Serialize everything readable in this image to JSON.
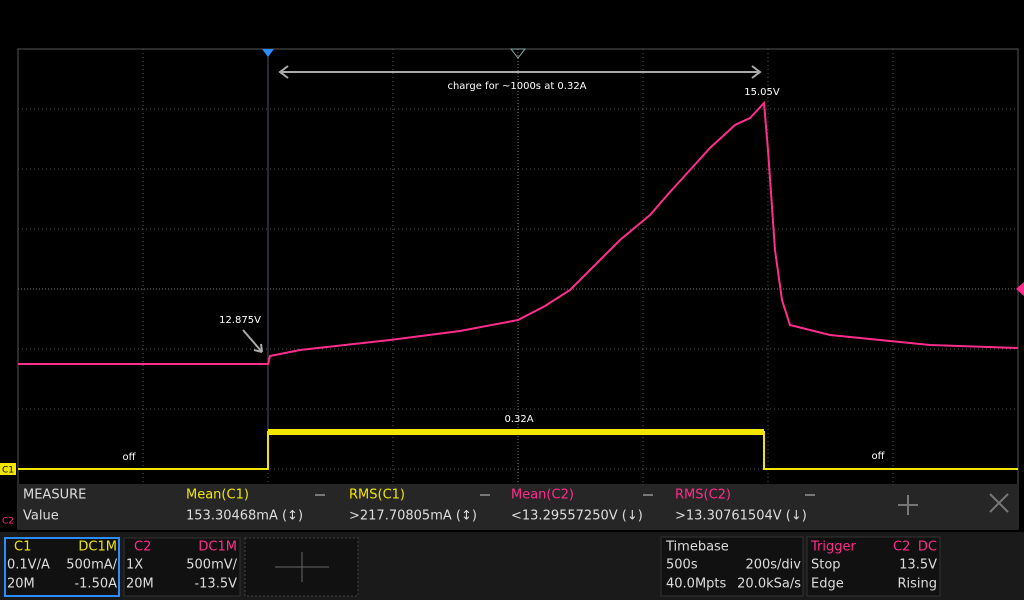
{
  "annotations": {
    "charge": "charge for ~1000s at 0.32A",
    "peak": "15.05V",
    "start": "12.875V",
    "current": "0.32A",
    "off_left": "off",
    "off_right": "off"
  },
  "markers": {
    "c1": "C1",
    "c2": "C2"
  },
  "measure": {
    "title": "MEASURE",
    "row_label": "Value",
    "columns": [
      {
        "name": "Mean(C1)",
        "value": "153.30468mA (↕)"
      },
      {
        "name": "RMS(C1)",
        "value": ">217.70805mA (↕)"
      },
      {
        "name": "Mean(C2)",
        "value": "<13.29557250V (↓)"
      },
      {
        "name": "RMS(C2)",
        "value": ">13.30761504V (↓)"
      }
    ]
  },
  "channels": [
    {
      "name": "C1",
      "coupling": "DC1M",
      "probe": "0.1V/A",
      "scale": "500mA/",
      "bandwidth": "20M",
      "offset": "-1.50A"
    },
    {
      "name": "C2",
      "coupling": "DC1M",
      "probe": "1X",
      "scale": "500mV/",
      "bandwidth": "20M",
      "offset": "-13.5V"
    }
  ],
  "timebase": {
    "title": "Timebase",
    "span": "500s",
    "scale": "200s/div",
    "points": "40.0Mpts",
    "rate": "20.0kSa/s"
  },
  "trigger": {
    "title": "Trigger",
    "source": "C2",
    "coupling": "DC",
    "state": "Stop",
    "level": "13.5V",
    "type": "Edge",
    "slope": "Rising"
  }
}
